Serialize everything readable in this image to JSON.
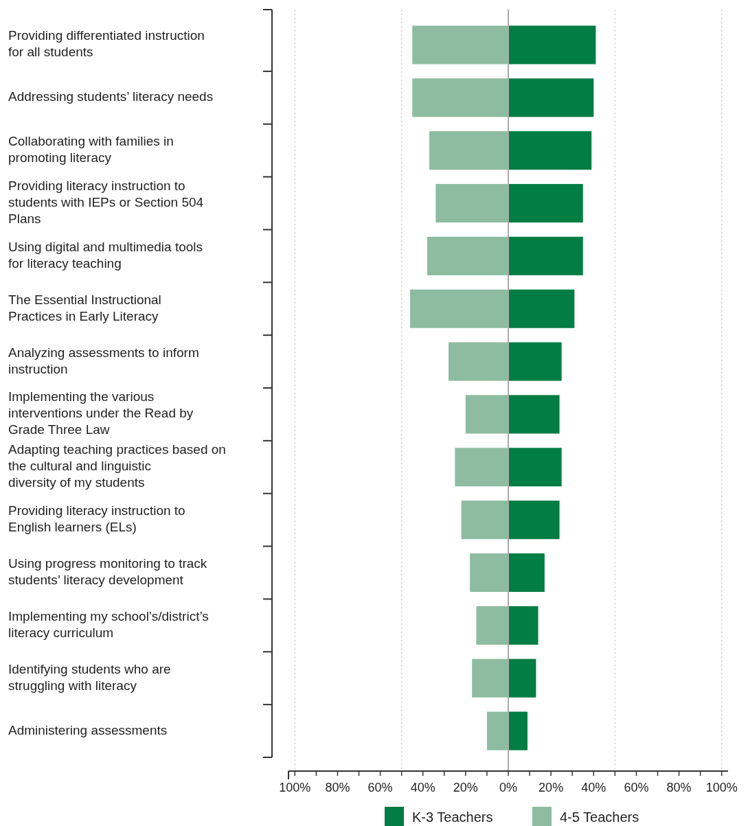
{
  "chart_data": {
    "type": "bar",
    "orientation": "horizontal",
    "stacked": true,
    "categories": [
      "Providing differentiated instruction for all students",
      "Addressing students’ literacy needs",
      "Collaborating with families in promoting literacy",
      "Providing literacy instruction to students with IEPs or Section 504 Plans",
      "Using digital and multimedia tools for literacy teaching",
      "The Essential Instructional Practices in Early Literacy",
      "Analyzing assessments to inform instruction",
      "Implementing the various interventions under the Read by Grade Three Law",
      "Adapting teaching practices based on the cultural and linguistic diversity of my students",
      "Providing literacy instruction to English learners (ELs)",
      "Using progress monitoring to track students’ literacy development",
      "Implementing my school’s/district’s literacy curriculum",
      "Identifying students who are struggling with literacy",
      "Administering assessments"
    ],
    "series": [
      {
        "name": "K-3 Teachers",
        "color": "#027d43",
        "values": [
          41,
          40,
          39,
          35,
          35,
          31,
          25,
          24,
          25,
          24,
          17,
          14,
          13,
          9
        ]
      },
      {
        "name": "4-5 Teachers",
        "color": "#8dbca1",
        "values": [
          -45,
          -45,
          -37,
          -34,
          -38,
          -46,
          -28,
          -20,
          -25,
          -22,
          -18,
          -15,
          -17,
          -10
        ]
      }
    ],
    "xlim": [
      -103,
      103
    ],
    "xticks": [
      {
        "value": -100,
        "label": "100%"
      },
      {
        "value": -90,
        "label": null
      },
      {
        "value": -80,
        "label": "80%"
      },
      {
        "value": -70,
        "label": null
      },
      {
        "value": -60,
        "label": "60%"
      },
      {
        "value": -50,
        "label": null
      },
      {
        "value": -40,
        "label": "40%"
      },
      {
        "value": -30,
        "label": null
      },
      {
        "value": -20,
        "label": "20%"
      },
      {
        "value": -10,
        "label": null
      },
      {
        "value": 0,
        "label": "0%"
      },
      {
        "value": 10,
        "label": null
      },
      {
        "value": 20,
        "label": "20%"
      },
      {
        "value": 30,
        "label": null
      },
      {
        "value": 40,
        "label": "40%"
      },
      {
        "value": 50,
        "label": null
      },
      {
        "value": 60,
        "label": "60%"
      },
      {
        "value": 70,
        "label": null
      },
      {
        "value": 80,
        "label": "80%"
      },
      {
        "value": 90,
        "label": null
      },
      {
        "value": 100,
        "label": "100%"
      }
    ],
    "ref_lines": [
      {
        "axis": "x",
        "value": -100,
        "color": "#cccccc",
        "line_style": "dotted"
      },
      {
        "axis": "x",
        "value": -50,
        "color": "#cccccc",
        "line_style": "dotted"
      },
      {
        "axis": "x",
        "value": 50,
        "color": "#cccccc",
        "line_style": "dotted"
      },
      {
        "axis": "x",
        "value": 100,
        "color": "#cccccc",
        "line_style": "dotted"
      },
      {
        "axis": "x",
        "value": 0,
        "color": "#aaaaaa",
        "line_style": "solid"
      }
    ],
    "grid": false,
    "legend": "bottom"
  }
}
